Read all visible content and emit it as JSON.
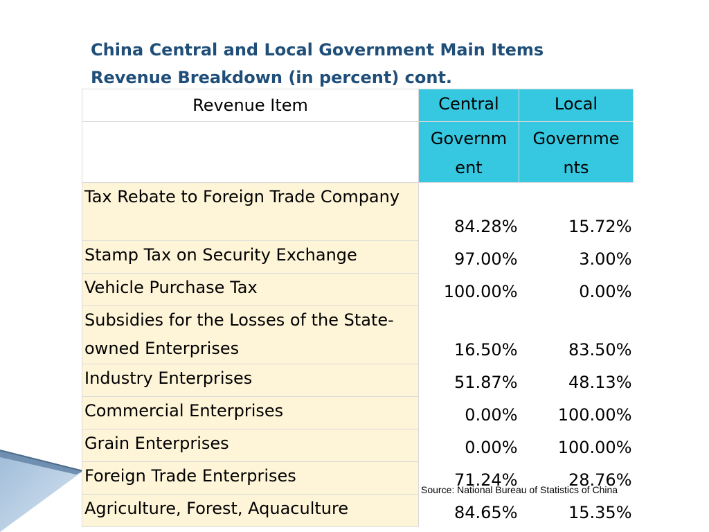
{
  "title": {
    "line1": "China Central and Local Government Main Items",
    "line2": "Revenue Breakdown (in percent) cont."
  },
  "table": {
    "header_item": "Revenue Item",
    "header_central_line1": "Central",
    "header_local_line1": "Local",
    "header_central_line2": "Governm ent",
    "header_local_line2": "Governme nts",
    "rows": [
      {
        "item": "Tax Rebate to Foreign Trade Company",
        "central": "84.28%",
        "local": "15.72%"
      },
      {
        "item": "Stamp Tax on Security Exchange",
        "central": "97.00%",
        "local": "3.00%"
      },
      {
        "item": "Vehicle Purchase Tax",
        "central": "100.00%",
        "local": "0.00%"
      },
      {
        "item": "Subsidies for the Losses of the State-owned Enterprises",
        "central": "16.50%",
        "local": "83.50%"
      },
      {
        "item": "Industry Enterprises",
        "central": "51.87%",
        "local": "48.13%"
      },
      {
        "item": "Commercial Enterprises",
        "central": "0.00%",
        "local": "100.00%"
      },
      {
        "item": "Grain Enterprises",
        "central": "0.00%",
        "local": "100.00%"
      },
      {
        "item": "Foreign Trade Enterprises",
        "central": "71.24%",
        "local": "28.76%"
      },
      {
        "item": "Agriculture, Forest, Aquaculture",
        "central": "84.65%",
        "local": "15.35%"
      }
    ]
  },
  "source": "Source: National Bureau of Statistics of China",
  "colors": {
    "title": "#1f4e79",
    "header_accent": "#35c8e0",
    "item_cell": "#fef4d8"
  }
}
